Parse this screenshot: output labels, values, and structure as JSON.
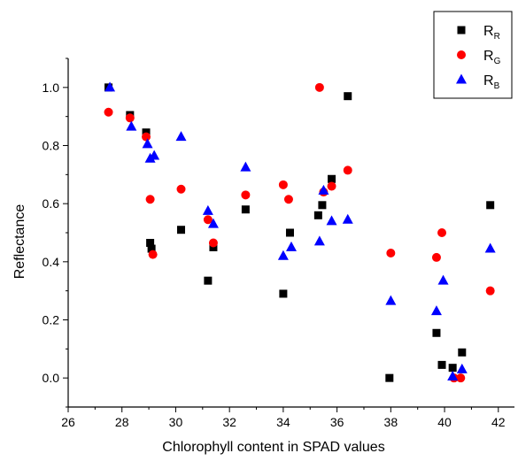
{
  "chart_data": {
    "type": "scatter",
    "xlabel": "Chlorophyll content in SPAD values",
    "ylabel": "Reflectance",
    "xlim": [
      26,
      42.6
    ],
    "ylim": [
      -0.1,
      1.1
    ],
    "xticks": [
      26,
      28,
      30,
      32,
      34,
      36,
      38,
      40,
      42
    ],
    "yticks": [
      0.0,
      0.2,
      0.4,
      0.6,
      0.8,
      1.0
    ],
    "xtick_labels": [
      "26",
      "28",
      "30",
      "32",
      "34",
      "36",
      "38",
      "40",
      "42"
    ],
    "ytick_labels": [
      "0.0",
      "0.2",
      "0.4",
      "0.6",
      "0.8",
      "1.0"
    ],
    "grid": false,
    "legend_position": "top-right",
    "series": [
      {
        "name": "R_R",
        "label_main": "R",
        "label_sub": "R",
        "marker": "square",
        "color": "#000000",
        "points": [
          [
            27.5,
            1.0
          ],
          [
            28.3,
            0.905
          ],
          [
            28.9,
            0.845
          ],
          [
            29.05,
            0.465
          ],
          [
            29.1,
            0.445
          ],
          [
            30.2,
            0.51
          ],
          [
            31.2,
            0.335
          ],
          [
            31.4,
            0.45
          ],
          [
            32.6,
            0.58
          ],
          [
            34.0,
            0.29
          ],
          [
            34.25,
            0.5
          ],
          [
            35.3,
            0.56
          ],
          [
            35.45,
            0.595
          ],
          [
            35.8,
            0.685
          ],
          [
            36.4,
            0.97
          ],
          [
            37.95,
            0.0
          ],
          [
            39.7,
            0.155
          ],
          [
            39.9,
            0.045
          ],
          [
            40.3,
            0.035
          ],
          [
            40.65,
            0.088
          ],
          [
            41.7,
            0.595
          ]
        ]
      },
      {
        "name": "R_G",
        "label_main": "R",
        "label_sub": "G",
        "marker": "circle",
        "color": "#ff0000",
        "points": [
          [
            27.5,
            0.915
          ],
          [
            28.3,
            0.895
          ],
          [
            28.9,
            0.83
          ],
          [
            29.05,
            0.615
          ],
          [
            29.15,
            0.425
          ],
          [
            30.2,
            0.65
          ],
          [
            31.2,
            0.545
          ],
          [
            31.4,
            0.465
          ],
          [
            32.6,
            0.63
          ],
          [
            34.0,
            0.665
          ],
          [
            34.2,
            0.615
          ],
          [
            35.35,
            1.0
          ],
          [
            35.5,
            0.64
          ],
          [
            35.8,
            0.66
          ],
          [
            36.4,
            0.715
          ],
          [
            38.0,
            0.43
          ],
          [
            39.7,
            0.415
          ],
          [
            39.9,
            0.5
          ],
          [
            40.35,
            0.0
          ],
          [
            40.6,
            0.0
          ],
          [
            41.7,
            0.3
          ]
        ]
      },
      {
        "name": "R_B",
        "label_main": "R",
        "label_sub": "B",
        "marker": "triangle",
        "color": "#0000ff",
        "points": [
          [
            27.55,
            1.0
          ],
          [
            28.35,
            0.865
          ],
          [
            28.95,
            0.805
          ],
          [
            29.05,
            0.755
          ],
          [
            29.2,
            0.765
          ],
          [
            30.2,
            0.83
          ],
          [
            31.2,
            0.575
          ],
          [
            31.4,
            0.53
          ],
          [
            32.6,
            0.725
          ],
          [
            34.0,
            0.42
          ],
          [
            34.3,
            0.45
          ],
          [
            35.35,
            0.47
          ],
          [
            35.5,
            0.645
          ],
          [
            35.8,
            0.54
          ],
          [
            36.4,
            0.545
          ],
          [
            38.0,
            0.265
          ],
          [
            39.7,
            0.23
          ],
          [
            39.95,
            0.335
          ],
          [
            40.3,
            0.005
          ],
          [
            40.65,
            0.03
          ],
          [
            41.7,
            0.445
          ]
        ]
      }
    ]
  }
}
